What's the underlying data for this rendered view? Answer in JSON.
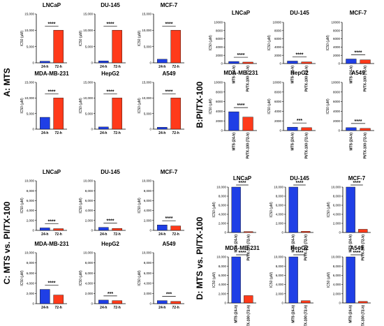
{
  "colors": {
    "bar_24h": "#1f3fe6",
    "bar_72h": "#ff3a1a",
    "axis": "#000000"
  },
  "sections": [
    {
      "id": "A",
      "label": "A: MTS",
      "ylabel": "IC50 (µM)",
      "x_labels": [
        "24-h",
        "72-h"
      ],
      "rotate_x": false
    },
    {
      "id": "B",
      "label": "B:PI/TX-100",
      "ylabel": "IC50 (µM)",
      "x_labels": [
        "MTS (24-h)",
        "PI/TX-100 (72-h)"
      ],
      "rotate_x": true
    },
    {
      "id": "C",
      "label": "C: MTS vs. PI/TX-100",
      "ylabel": "IC50 (µM)",
      "x_labels": [
        "24-h",
        "72-h"
      ],
      "rotate_x": false
    },
    {
      "id": "D",
      "label": "D: MTS vs. PI/TX-100",
      "ylabel": "IC50 (µM)",
      "x_labels": [
        "MTS (24-h)",
        "PI/TX-100 (72-h)"
      ],
      "rotate_x": true
    }
  ],
  "chart_data": [
    {
      "section": "A",
      "type": "bar",
      "title": "LNCaP",
      "categories": [
        "24-h",
        "72-h"
      ],
      "values": [
        500,
        10000
      ],
      "ylim": [
        0,
        15000
      ],
      "yticks": [
        "0",
        "5,000",
        "10,000",
        "15,000"
      ],
      "significance": "****"
    },
    {
      "section": "A",
      "type": "bar",
      "title": "DU-145",
      "categories": [
        "24-h",
        "72-h"
      ],
      "values": [
        600,
        10000
      ],
      "ylim": [
        0,
        15000
      ],
      "yticks": [
        "0",
        "5,000",
        "10,000",
        "15,000"
      ],
      "significance": "****"
    },
    {
      "section": "A",
      "type": "bar",
      "title": "MCF-7",
      "categories": [
        "24-h",
        "72-h"
      ],
      "values": [
        1100,
        10000
      ],
      "ylim": [
        0,
        15000
      ],
      "yticks": [
        "0",
        "5,000",
        "10,000",
        "15,000"
      ],
      "significance": "****"
    },
    {
      "section": "A",
      "type": "bar",
      "title": "MDA-MB-231",
      "categories": [
        "24-h",
        "72-h"
      ],
      "values": [
        3800,
        10000
      ],
      "ylim": [
        0,
        15000
      ],
      "yticks": [
        "0",
        "5,000",
        "10,000",
        "15,000"
      ],
      "significance": "****"
    },
    {
      "section": "A",
      "type": "bar",
      "title": "HepG2",
      "categories": [
        "24-h",
        "72-h"
      ],
      "values": [
        700,
        10000
      ],
      "ylim": [
        0,
        15000
      ],
      "yticks": [
        "0",
        "5,000",
        "10,000",
        "15,000"
      ],
      "significance": "****"
    },
    {
      "section": "A",
      "type": "bar",
      "title": "A549",
      "categories": [
        "24-h",
        "72-h"
      ],
      "values": [
        600,
        10000
      ],
      "ylim": [
        0,
        15000
      ],
      "yticks": [
        "0",
        "5,000",
        "10,000",
        "15,000"
      ],
      "significance": "****"
    },
    {
      "section": "B",
      "type": "bar",
      "title": "LNCaP",
      "categories": [
        "MTS (24-h)",
        "PI/TX-100 (72-h)"
      ],
      "values": [
        500,
        350
      ],
      "ylim": [
        0,
        10000
      ],
      "yticks": [
        "0",
        "2000",
        "4000",
        "6000",
        "8000",
        "10000"
      ],
      "significance": "****"
    },
    {
      "section": "B",
      "type": "bar",
      "title": "DU-145",
      "categories": [
        "MTS (24-h)",
        "PI/TX-100 (72-h)"
      ],
      "values": [
        600,
        400
      ],
      "ylim": [
        0,
        10000
      ],
      "yticks": [
        "0",
        "2000",
        "4000",
        "6000",
        "8000",
        "10000"
      ],
      "significance": "****"
    },
    {
      "section": "B",
      "type": "bar",
      "title": "MCF-7",
      "categories": [
        "MTS (24-h)",
        "PI/TX-100 (72-h)"
      ],
      "values": [
        1100,
        900
      ],
      "ylim": [
        0,
        10000
      ],
      "yticks": [
        "0",
        "2000",
        "4000",
        "6000",
        "8000",
        "10000"
      ],
      "significance": "****"
    },
    {
      "section": "B",
      "type": "bar",
      "title": "MDA-MB-231",
      "categories": [
        "MTS (24-h)",
        "PI/TX-100 (72-h)"
      ],
      "values": [
        3900,
        2800
      ],
      "ylim": [
        0,
        10000
      ],
      "yticks": [
        "0",
        "2000",
        "4000",
        "6000",
        "8000",
        "10000"
      ],
      "significance": "****"
    },
    {
      "section": "B",
      "type": "bar",
      "title": "HepG2",
      "categories": [
        "MTS (24-h)",
        "PI/TX-100 (72-h)"
      ],
      "values": [
        700,
        600
      ],
      "ylim": [
        0,
        10000
      ],
      "yticks": [
        "0",
        "2000",
        "4000",
        "6000",
        "8000",
        "10000"
      ],
      "significance": "***"
    },
    {
      "section": "B",
      "type": "bar",
      "title": "A549",
      "categories": [
        "MTS (24-h)",
        "PI/TX-100 (72-h)"
      ],
      "values": [
        600,
        450
      ],
      "ylim": [
        0,
        10000
      ],
      "yticks": [
        "0",
        "2000",
        "4000",
        "6000",
        "8000",
        "10000"
      ],
      "significance": "****"
    },
    {
      "section": "C",
      "type": "bar",
      "title": "LNCaP",
      "categories": [
        "24-h",
        "72-h"
      ],
      "values": [
        500,
        350
      ],
      "ylim": [
        0,
        10000
      ],
      "yticks": [
        "0",
        "2,000",
        "4,000",
        "6,000",
        "8,000",
        "10,000"
      ],
      "significance": "****"
    },
    {
      "section": "C",
      "type": "bar",
      "title": "DU-145",
      "categories": [
        "24-h",
        "72-h"
      ],
      "values": [
        600,
        400
      ],
      "ylim": [
        0,
        10000
      ],
      "yticks": [
        "0",
        "2,000",
        "4,000",
        "6,000",
        "8,000",
        "10,000"
      ],
      "significance": "****"
    },
    {
      "section": "C",
      "type": "bar",
      "title": "MCF-7",
      "categories": [
        "24-h",
        "72-h"
      ],
      "values": [
        1100,
        900
      ],
      "ylim": [
        0,
        10000
      ],
      "yticks": [
        "0",
        "2,000",
        "4,000",
        "6,000",
        "8,000",
        "10,000"
      ],
      "significance": "****"
    },
    {
      "section": "C",
      "type": "bar",
      "title": "MDA-MB-231",
      "categories": [
        "24-h",
        "72-h"
      ],
      "values": [
        2800,
        1700
      ],
      "ylim": [
        0,
        10000
      ],
      "yticks": [
        "0",
        "2,000",
        "4,000",
        "6,000",
        "8,000",
        "10,000"
      ],
      "significance": "****"
    },
    {
      "section": "C",
      "type": "bar",
      "title": "HepG2",
      "categories": [
        "24-h",
        "72-h"
      ],
      "values": [
        700,
        600
      ],
      "ylim": [
        0,
        10000
      ],
      "yticks": [
        "0",
        "2,000",
        "4,000",
        "6,000",
        "8,000",
        "10,000"
      ],
      "significance": "***"
    },
    {
      "section": "C",
      "type": "bar",
      "title": "A549",
      "categories": [
        "24-h",
        "72-h"
      ],
      "values": [
        600,
        450
      ],
      "ylim": [
        0,
        10000
      ],
      "yticks": [
        "0",
        "2,000",
        "4,000",
        "6,000",
        "8,000",
        "10,000"
      ],
      "significance": "***"
    },
    {
      "section": "D",
      "type": "bar",
      "title": "LNCaP",
      "categories": [
        "MTS (24-h)",
        "PI/TX-100 (72-h)"
      ],
      "values": [
        10000,
        200
      ],
      "ylim": [
        0,
        10000
      ],
      "yticks": [
        "0",
        "2,000",
        "4,000",
        "6,000",
        "8,000",
        "10,000"
      ],
      "significance": "****"
    },
    {
      "section": "D",
      "type": "bar",
      "title": "DU-145",
      "categories": [
        "MTS (24-h)",
        "PI/TX-100 (72-h)"
      ],
      "values": [
        10000,
        250
      ],
      "ylim": [
        0,
        10000
      ],
      "yticks": [
        "0",
        "2,000",
        "4,000",
        "6,000",
        "8,000",
        "10,000"
      ],
      "significance": "****"
    },
    {
      "section": "D",
      "type": "bar",
      "title": "MCF-7",
      "categories": [
        "MTS (24-h)",
        "PI/TX-100 (72-h)"
      ],
      "values": [
        10000,
        700
      ],
      "ylim": [
        0,
        10000
      ],
      "yticks": [
        "0",
        "2,000",
        "4,000",
        "6,000",
        "8,000",
        "10,000"
      ],
      "significance": "****"
    },
    {
      "section": "D",
      "type": "bar",
      "title": "MDA-MB-231",
      "categories": [
        "MTS (24-h)",
        "PI/TX-100 (72-h)"
      ],
      "values": [
        10000,
        1600
      ],
      "ylim": [
        0,
        10000
      ],
      "yticks": [
        "0",
        "2,000",
        "4,000",
        "6,000",
        "8,000",
        "10,000"
      ],
      "significance": "****"
    },
    {
      "section": "D",
      "type": "bar",
      "title": "HepG2",
      "categories": [
        "MTS (24-h)",
        "PI/TX-100 (72-h)"
      ],
      "values": [
        10000,
        500
      ],
      "ylim": [
        0,
        10000
      ],
      "yticks": [
        "0",
        "2,000",
        "4,000",
        "6,000",
        "8,000",
        "10,000"
      ],
      "significance": "****"
    },
    {
      "section": "D",
      "type": "bar",
      "title": "A549",
      "categories": [
        "MTS (24-h)",
        "PI/TX-100 (72-h)"
      ],
      "values": [
        10000,
        350
      ],
      "ylim": [
        0,
        10000
      ],
      "yticks": [
        "0",
        "2,000",
        "4,000",
        "6,000",
        "8,000",
        "10,000"
      ],
      "significance": "****"
    }
  ]
}
